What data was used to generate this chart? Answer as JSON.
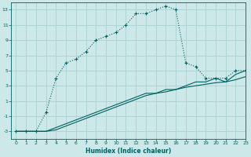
{
  "title": "",
  "xlabel": "Humidex (Indice chaleur)",
  "bg_color": "#cde8e8",
  "grid_color": "#b0d4d4",
  "line_color": "#006060",
  "xlim": [
    -0.5,
    23
  ],
  "ylim": [
    -4,
    14
  ],
  "yticks": [
    -3,
    -1,
    1,
    3,
    5,
    7,
    9,
    11,
    13
  ],
  "xticks": [
    0,
    1,
    2,
    3,
    4,
    5,
    6,
    7,
    8,
    9,
    10,
    11,
    12,
    13,
    14,
    15,
    16,
    17,
    18,
    19,
    20,
    21,
    22,
    23
  ],
  "curve1_x": [
    0,
    1,
    2,
    3,
    4,
    5,
    6,
    7,
    8,
    9,
    10,
    11,
    12,
    13,
    14,
    15,
    16,
    17,
    18,
    19,
    20,
    21,
    22,
    23
  ],
  "curve1_y": [
    -3.0,
    -3.0,
    -3.0,
    -0.5,
    4.0,
    6.0,
    6.5,
    7.5,
    9.0,
    9.5,
    10.0,
    11.0,
    12.5,
    12.5,
    13.0,
    13.5,
    13.0,
    6.0,
    5.5,
    4.0,
    4.0,
    4.0,
    5.0,
    5.0
  ],
  "curve2_x": [
    0,
    1,
    2,
    3,
    4,
    5,
    6,
    7,
    8,
    9,
    10,
    11,
    12,
    13,
    14,
    15,
    16,
    17,
    18,
    19,
    20,
    21,
    22,
    23
  ],
  "curve2_y": [
    -3.0,
    -3.0,
    -3.0,
    -3.0,
    -2.5,
    -2.0,
    -1.5,
    -1.0,
    -0.5,
    0.0,
    0.5,
    1.0,
    1.5,
    2.0,
    2.0,
    2.5,
    2.5,
    3.0,
    3.5,
    3.5,
    4.0,
    3.5,
    4.5,
    5.0
  ],
  "curve3_x": [
    0,
    1,
    2,
    3,
    4,
    5,
    6,
    7,
    8,
    9,
    10,
    11,
    12,
    13,
    14,
    15,
    16,
    17,
    18,
    19,
    20,
    21,
    22,
    23
  ],
  "curve3_y": [
    -3.0,
    -3.0,
    -3.0,
    -3.0,
    -2.8,
    -2.3,
    -1.8,
    -1.3,
    -0.8,
    -0.3,
    0.2,
    0.7,
    1.2,
    1.7,
    2.0,
    2.2,
    2.5,
    2.8,
    3.0,
    3.2,
    3.4,
    3.5,
    3.8,
    4.2
  ]
}
